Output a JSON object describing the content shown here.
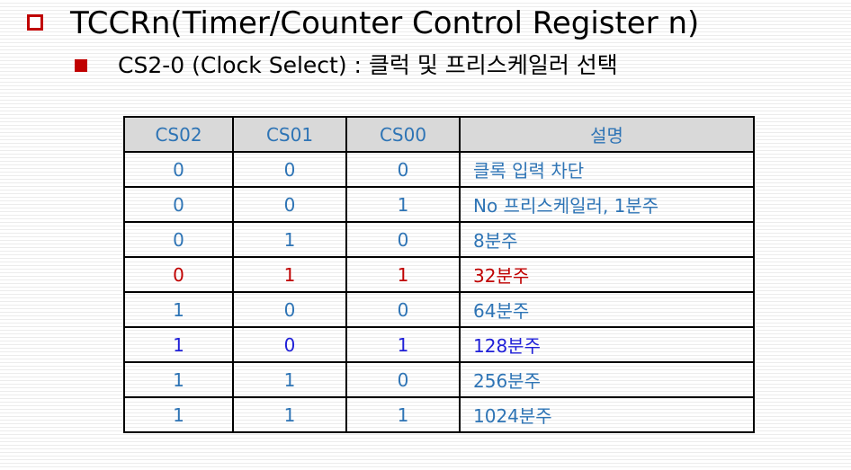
{
  "title": "TCCRn(Timer/Counter Control Register n)",
  "subtitle": "CS2-0 (Clock Select) : 클럭 및 프리스케일러 선택",
  "colors": {
    "bullet": "#c00000",
    "text_blue": "#2e74b5",
    "text_red": "#c00000",
    "text_dark_blue": "#1f1fd8",
    "header_bg": "#d9d9d9"
  },
  "table": {
    "headers": [
      "CS02",
      "CS01",
      "CS00",
      "설명"
    ],
    "rows": [
      {
        "cs02": "0",
        "cs01": "0",
        "cs00": "0",
        "desc": "클록 입력 차단",
        "color": "blue"
      },
      {
        "cs02": "0",
        "cs01": "0",
        "cs00": "1",
        "desc": "No 프리스케일러, 1분주",
        "color": "blue"
      },
      {
        "cs02": "0",
        "cs01": "1",
        "cs00": "0",
        "desc": "8분주",
        "color": "blue"
      },
      {
        "cs02": "0",
        "cs01": "1",
        "cs00": "1",
        "desc": "32분주",
        "color": "red"
      },
      {
        "cs02": "1",
        "cs01": "0",
        "cs00": "0",
        "desc": "64분주",
        "color": "blue"
      },
      {
        "cs02": "1",
        "cs01": "0",
        "cs00": "1",
        "desc": "128분주",
        "color": "dark-blue"
      },
      {
        "cs02": "1",
        "cs01": "1",
        "cs00": "0",
        "desc": "256분주",
        "color": "blue"
      },
      {
        "cs02": "1",
        "cs01": "1",
        "cs00": "1",
        "desc": "1024분주",
        "color": "blue"
      }
    ]
  }
}
